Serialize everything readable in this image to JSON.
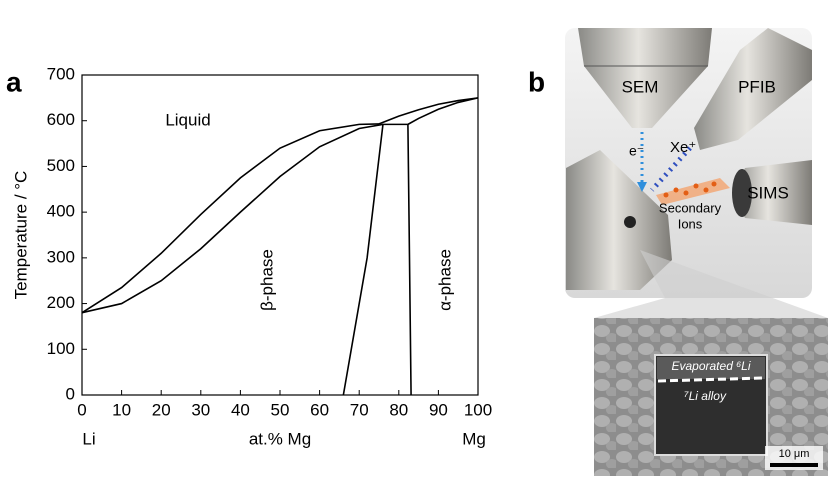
{
  "chart_data": {
    "type": "line",
    "label": "a",
    "ylabel": "Temperature / °C",
    "xlabel_left": "Li",
    "xlabel": "at.% Mg",
    "xlabel_right": "Mg",
    "annotations": [
      "Liquid",
      "β-phase",
      "α-phase"
    ],
    "xlim": [
      0,
      100
    ],
    "ylim": [
      0,
      700
    ],
    "xticks": [
      0,
      10,
      20,
      30,
      40,
      50,
      60,
      70,
      80,
      90,
      100
    ],
    "yticks": [
      0,
      100,
      200,
      300,
      400,
      500,
      600,
      700
    ],
    "series": [
      {
        "color": "#000000",
        "x": [
          0,
          10,
          20,
          30,
          40,
          50,
          60,
          70,
          75
        ],
        "values": [
          180,
          235,
          310,
          395,
          475,
          540,
          578,
          592,
          593
        ]
      },
      {
        "color": "#000000",
        "x": [
          0,
          10,
          20,
          30,
          40,
          50,
          60,
          70,
          76
        ],
        "values": [
          180,
          200,
          250,
          320,
          400,
          478,
          543,
          583,
          592
        ]
      },
      {
        "color": "#000000",
        "x": [
          76,
          82.3
        ],
        "values": [
          592,
          592
        ]
      },
      {
        "color": "#000000",
        "x": [
          75,
          80,
          85,
          90,
          95,
          100
        ],
        "values": [
          593,
          610,
          624,
          636,
          644,
          650
        ]
      },
      {
        "color": "#000000",
        "x": [
          82.3,
          85,
          90,
          95,
          100
        ],
        "values": [
          592,
          605,
          625,
          640,
          650
        ]
      },
      {
        "color": "#000000",
        "x": [
          76,
          72,
          66
        ],
        "values": [
          592,
          300,
          0
        ]
      },
      {
        "color": "#000000",
        "x": [
          82.3,
          82.7,
          83.1
        ],
        "values": [
          592,
          300,
          0
        ]
      }
    ]
  },
  "panel_b": {
    "label": "b",
    "sem": "SEM",
    "pfib": "PFIB",
    "electron": "e⁻",
    "xenon": "Xe⁺",
    "sims": "SIMS",
    "secondary_ions": [
      "Secondary",
      "Ions"
    ],
    "inset": {
      "layer_top": "Evaporated ⁶Li",
      "layer_bottom": "⁷Li alloy",
      "scale_bar": "10 μm"
    }
  }
}
